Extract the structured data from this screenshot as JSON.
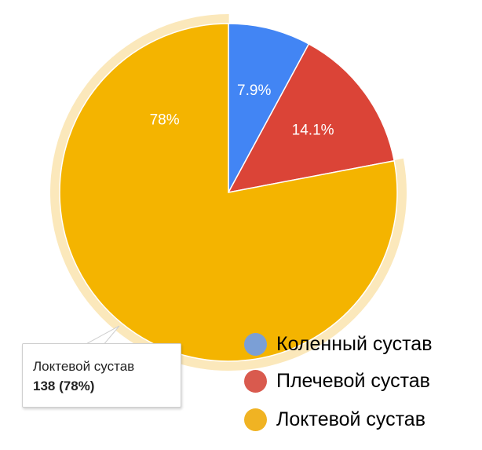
{
  "chart_data": {
    "type": "pie",
    "title": "",
    "slices": [
      {
        "name": "Коленный сустав",
        "value": 7.9,
        "label": "7.9%",
        "color": "#4285f4"
      },
      {
        "name": "Плечевой сустав",
        "value": 14.1,
        "label": "14.1%",
        "color": "#db4437"
      },
      {
        "name": "Локтевой сустав",
        "value": 78,
        "label": "78%",
        "color": "#f4b400",
        "highlighted": true
      }
    ],
    "highlight_color": "#fbe8bb",
    "legend_position": "bottom-right",
    "legend_colors": [
      "#7b9fd6",
      "#d95a4e",
      "#f0b323"
    ]
  },
  "tooltip": {
    "title": "Локтевой сустав",
    "value": "138 (78%)"
  }
}
